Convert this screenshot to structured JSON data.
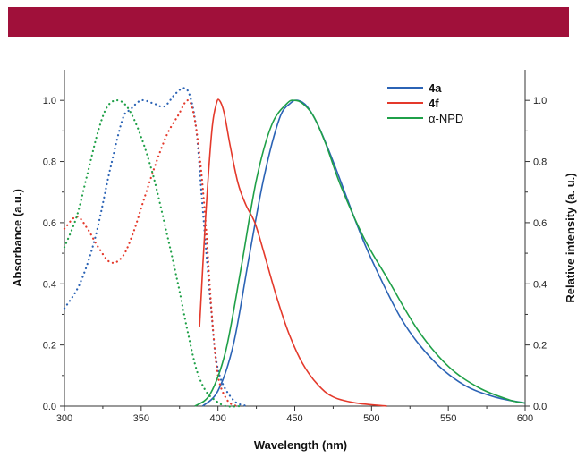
{
  "banner_color": "#a0103a",
  "chart_data": {
    "type": "line",
    "xlabel": "Wavelength (nm)",
    "ylabel_left": "Absorbance (a.u.)",
    "ylabel_right": "Relative intensity (a. u.)",
    "xlim": [
      300,
      600
    ],
    "ylim": [
      0,
      1.1
    ],
    "x_ticks": [
      300,
      350,
      400,
      450,
      500,
      550,
      600
    ],
    "x_tick_labels": [
      "300",
      "350",
      "400",
      "450",
      "500",
      "550",
      "600"
    ],
    "y_ticks": [
      0,
      0.2,
      0.4,
      0.6,
      0.8,
      1.0
    ],
    "y_tick_labels": [
      "0.0",
      "0.2",
      "0.4",
      "0.6",
      "0.8",
      "1.0"
    ],
    "grid": false,
    "legend_position": "top-right",
    "legend": [
      {
        "label": "4a",
        "color": "#2b63b5",
        "bold": true
      },
      {
        "label": "4f",
        "color": "#e4392b",
        "bold": true
      },
      {
        "label": "α-NPD",
        "color": "#1fa048",
        "bold": false
      }
    ],
    "series": [
      {
        "name": "4a",
        "kind": "absorption",
        "style": "dotted",
        "color": "#2b63b5",
        "x": [
          300,
          310,
          320,
          330,
          338,
          343,
          350,
          358,
          365,
          372,
          378,
          382,
          386,
          390,
          395,
          400,
          410,
          420
        ],
        "y": [
          0.32,
          0.4,
          0.55,
          0.78,
          0.94,
          0.97,
          1.0,
          0.99,
          0.98,
          1.02,
          1.04,
          1.01,
          0.9,
          0.65,
          0.35,
          0.12,
          0.02,
          0.0
        ]
      },
      {
        "name": "4a",
        "kind": "emission",
        "style": "solid",
        "color": "#2b63b5",
        "x": [
          390,
          400,
          410,
          420,
          430,
          440,
          447,
          452,
          458,
          465,
          475,
          490,
          500,
          520,
          540,
          560,
          580,
          600
        ],
        "y": [
          0.0,
          0.05,
          0.2,
          0.48,
          0.75,
          0.94,
          0.99,
          1.0,
          0.98,
          0.92,
          0.8,
          0.6,
          0.48,
          0.28,
          0.15,
          0.07,
          0.03,
          0.01
        ]
      },
      {
        "name": "4f",
        "kind": "absorption",
        "style": "dotted",
        "color": "#e4392b",
        "x": [
          300,
          308,
          315,
          322,
          330,
          338,
          345,
          352,
          360,
          367,
          374,
          380,
          384,
          388,
          392,
          396,
          400,
          406,
          412
        ],
        "y": [
          0.58,
          0.62,
          0.58,
          0.52,
          0.47,
          0.49,
          0.57,
          0.68,
          0.8,
          0.89,
          0.95,
          1.0,
          0.96,
          0.82,
          0.6,
          0.3,
          0.1,
          0.02,
          0.0
        ]
      },
      {
        "name": "4f",
        "kind": "emission",
        "style": "solid",
        "color": "#e4392b",
        "x": [
          388,
          392,
          396,
          399,
          401,
          404,
          408,
          413,
          418,
          424,
          430,
          438,
          446,
          455,
          465,
          475,
          490,
          510
        ],
        "y": [
          0.26,
          0.62,
          0.9,
          0.99,
          1.0,
          0.96,
          0.85,
          0.73,
          0.66,
          0.6,
          0.5,
          0.36,
          0.24,
          0.14,
          0.07,
          0.03,
          0.01,
          0.0
        ]
      },
      {
        "name": "α-NPD",
        "kind": "absorption",
        "style": "dotted",
        "color": "#1fa048",
        "x": [
          300,
          308,
          315,
          322,
          328,
          335,
          342,
          350,
          358,
          366,
          374,
          380,
          386,
          392,
          398,
          405,
          415
        ],
        "y": [
          0.52,
          0.62,
          0.76,
          0.9,
          0.98,
          1.0,
          0.97,
          0.88,
          0.75,
          0.58,
          0.4,
          0.25,
          0.12,
          0.05,
          0.02,
          0.0,
          0.0
        ]
      },
      {
        "name": "α-NPD",
        "kind": "emission",
        "style": "solid",
        "color": "#1fa048",
        "x": [
          385,
          395,
          405,
          415,
          425,
          435,
          445,
          450,
          455,
          462,
          470,
          480,
          495,
          510,
          530,
          550,
          570,
          590,
          600
        ],
        "y": [
          0.0,
          0.04,
          0.18,
          0.45,
          0.74,
          0.92,
          0.99,
          1.0,
          0.99,
          0.95,
          0.86,
          0.72,
          0.55,
          0.42,
          0.25,
          0.13,
          0.06,
          0.02,
          0.01
        ]
      }
    ]
  }
}
